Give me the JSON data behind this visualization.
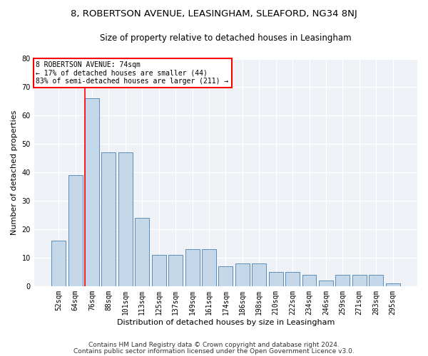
{
  "title_line1": "8, ROBERTSON AVENUE, LEASINGHAM, SLEAFORD, NG34 8NJ",
  "title_line2": "Size of property relative to detached houses in Leasingham",
  "xlabel": "Distribution of detached houses by size in Leasingham",
  "ylabel": "Number of detached properties",
  "categories": [
    "52sqm",
    "64sqm",
    "76sqm",
    "88sqm",
    "101sqm",
    "113sqm",
    "125sqm",
    "137sqm",
    "149sqm",
    "161sqm",
    "174sqm",
    "186sqm",
    "198sqm",
    "210sqm",
    "222sqm",
    "234sqm",
    "246sqm",
    "259sqm",
    "271sqm",
    "283sqm",
    "295sqm"
  ],
  "bar_heights": [
    16,
    39,
    66,
    47,
    47,
    24,
    11,
    11,
    13,
    13,
    7,
    8,
    8,
    5,
    5,
    4,
    2,
    4,
    4,
    4,
    1
  ],
  "bar_color": "#c5d8ea",
  "bar_edge_color": "#5b8db8",
  "annotation_text": "8 ROBERTSON AVENUE: 74sqm\n← 17% of detached houses are smaller (44)\n83% of semi-detached houses are larger (211) →",
  "annotation_box_color": "white",
  "annotation_box_edgecolor": "red",
  "vline_color": "red",
  "ylim": [
    0,
    80
  ],
  "yticks": [
    0,
    10,
    20,
    30,
    40,
    50,
    60,
    70,
    80
  ],
  "bg_color": "#eef2f7",
  "footer_line1": "Contains HM Land Registry data © Crown copyright and database right 2024.",
  "footer_line2": "Contains public sector information licensed under the Open Government Licence v3.0.",
  "title_fontsize": 9.5,
  "subtitle_fontsize": 8.5,
  "xlabel_fontsize": 8,
  "ylabel_fontsize": 8,
  "tick_fontsize": 7,
  "footer_fontsize": 6.5,
  "annot_fontsize": 7
}
